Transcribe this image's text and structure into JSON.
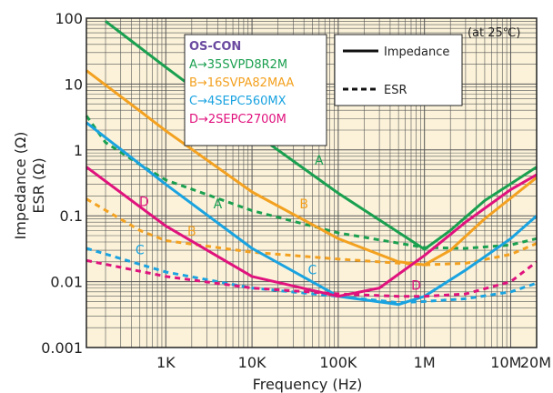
{
  "chart_data": {
    "type": "line",
    "xlabel": "Frequency (Hz)",
    "ylabel_line1": "Impedance (Ω)",
    "ylabel_line2": "ESR (Ω)",
    "x_scale": "log",
    "y_scale": "log",
    "xlim": [
      120,
      20000000
    ],
    "ylim": [
      0.001,
      100
    ],
    "x_ticks": [
      {
        "value": 1000,
        "label": "1K"
      },
      {
        "value": 10000,
        "label": "10K"
      },
      {
        "value": 100000,
        "label": "100K"
      },
      {
        "value": 1000000,
        "label": "1M"
      },
      {
        "value": 10000000,
        "label": "10M"
      },
      {
        "value": 20000000,
        "label": "20M"
      }
    ],
    "y_ticks": [
      {
        "value": 0.001,
        "label": "0.001"
      },
      {
        "value": 0.01,
        "label": "0.01"
      },
      {
        "value": 0.1,
        "label": "0.1"
      },
      {
        "value": 1,
        "label": "1"
      },
      {
        "value": 10,
        "label": "10"
      },
      {
        "value": 100,
        "label": "100"
      }
    ],
    "grid": true,
    "background": "#fbf2d9",
    "annotation": "(at 25℃)",
    "series_box": {
      "title": "OS-CON",
      "title_color": "#6a4aa0",
      "entries": [
        {
          "text": "A→35SVPD8R2M",
          "color": "#1ba050"
        },
        {
          "text": "B→16SVPA82MAA",
          "color": "#f3a120"
        },
        {
          "text": "C→4SEPC560MX",
          "color": "#1aa3e0"
        },
        {
          "text": "D→2SEPC2700M",
          "color": "#e0127d"
        }
      ]
    },
    "line_legend": [
      {
        "name": "Impedance",
        "style": "solid"
      },
      {
        "name": "ESR",
        "style": "dashed"
      }
    ],
    "series": [
      {
        "key": "A",
        "kind": "impedance",
        "color": "#1ba050",
        "x": [
          120,
          200,
          1000,
          10000,
          100000,
          1000000,
          2000000,
          5000000,
          20000000
        ],
        "y": [
          null,
          90,
          18,
          1.9,
          0.22,
          0.031,
          0.06,
          0.17,
          0.55
        ]
      },
      {
        "key": "A",
        "kind": "esr",
        "color": "#1ba050",
        "x": [
          120,
          200,
          500,
          1000,
          10000,
          100000,
          1000000,
          3000000,
          10000000,
          20000000
        ],
        "y": [
          3.3,
          1.3,
          0.6,
          0.35,
          0.12,
          0.055,
          0.033,
          0.032,
          0.036,
          0.045
        ]
      },
      {
        "key": "B",
        "kind": "impedance",
        "color": "#f3a120",
        "x": [
          120,
          500,
          1000,
          10000,
          100000,
          500000,
          1000000,
          2000000,
          5000000,
          20000000
        ],
        "y": [
          16,
          3.9,
          1.95,
          0.23,
          0.045,
          0.02,
          0.018,
          0.03,
          0.09,
          0.38
        ]
      },
      {
        "key": "B",
        "kind": "esr",
        "color": "#f3a120",
        "x": [
          120,
          500,
          1000,
          10000,
          100000,
          1000000,
          3000000,
          10000000,
          20000000
        ],
        "y": [
          0.18,
          0.06,
          0.042,
          0.028,
          0.022,
          0.018,
          0.019,
          0.026,
          0.038
        ]
      },
      {
        "key": "C",
        "kind": "impedance",
        "color": "#1aa3e0",
        "x": [
          120,
          1000,
          10000,
          100000,
          500000,
          1000000,
          3000000,
          10000000,
          20000000
        ],
        "y": [
          2.6,
          0.3,
          0.032,
          0.006,
          0.0045,
          0.006,
          0.015,
          0.045,
          0.1
        ]
      },
      {
        "key": "C",
        "kind": "esr",
        "color": "#1aa3e0",
        "x": [
          120,
          1000,
          10000,
          100000,
          500000,
          1000000,
          3000000,
          10000000,
          20000000
        ],
        "y": [
          0.032,
          0.014,
          0.008,
          0.006,
          0.0048,
          0.005,
          0.0055,
          0.007,
          0.0095
        ]
      },
      {
        "key": "D",
        "kind": "impedance",
        "color": "#e0127d",
        "x": [
          120,
          1000,
          10000,
          100000,
          300000,
          1000000,
          3000000,
          10000000,
          20000000
        ],
        "y": [
          0.55,
          0.07,
          0.012,
          0.006,
          0.008,
          0.025,
          0.08,
          0.25,
          0.42
        ]
      },
      {
        "key": "D",
        "kind": "esr",
        "color": "#e0127d",
        "x": [
          120,
          1000,
          10000,
          100000,
          500000,
          1000000,
          3000000,
          10000000,
          20000000
        ],
        "y": [
          0.021,
          0.012,
          0.008,
          0.0065,
          0.006,
          0.006,
          0.0065,
          0.01,
          0.02
        ]
      }
    ],
    "curve_labels": [
      {
        "text": "A",
        "color": "#1ba050",
        "x": 60000,
        "y": 0.6
      },
      {
        "text": "A",
        "color": "#1ba050",
        "x": 4000,
        "y": 0.13
      },
      {
        "text": "B",
        "color": "#f3a120",
        "x": 40000,
        "y": 0.13
      },
      {
        "text": "B",
        "color": "#f3a120",
        "x": 2000,
        "y": 0.05
      },
      {
        "text": "C",
        "color": "#1aa3e0",
        "x": 500,
        "y": 0.026
      },
      {
        "text": "C",
        "color": "#1aa3e0",
        "x": 50000,
        "y": 0.013
      },
      {
        "text": "D",
        "color": "#e0127d",
        "x": 560,
        "y": 0.14
      },
      {
        "text": "D",
        "color": "#e0127d",
        "x": 800000,
        "y": 0.0075
      }
    ]
  }
}
